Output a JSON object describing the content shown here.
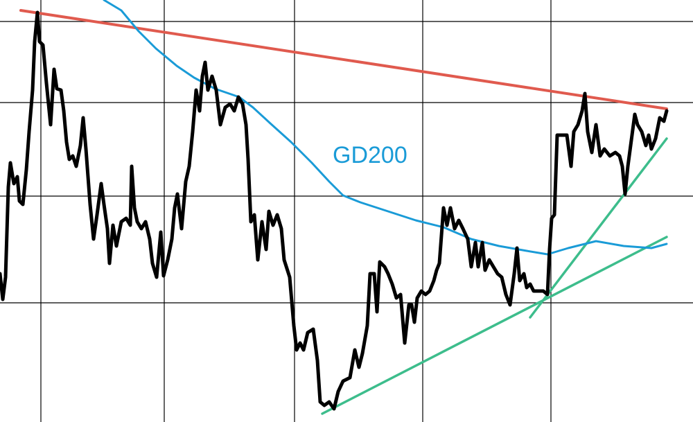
{
  "chart_data": {
    "type": "line",
    "xlim": [
      0,
      1000
    ],
    "ylim": [
      0,
      609
    ],
    "xticks": [
      59,
      237,
      425,
      610,
      795
    ],
    "yticks": [
      172,
      326,
      461,
      578
    ],
    "grid": true,
    "series": [
      {
        "color": "#000000",
        "x": [
          0,
          4,
          8,
          12,
          15,
          20,
          25,
          28,
          33,
          38,
          42,
          47,
          50,
          54,
          57,
          62,
          67,
          73,
          78,
          82,
          88,
          92,
          96,
          100,
          105,
          110,
          116,
          120,
          124,
          130,
          135,
          140,
          146,
          150,
          155,
          158,
          163,
          168,
          175,
          182,
          188,
          190,
          194,
          198,
          204,
          210,
          216,
          220,
          226,
          232,
          236,
          242,
          248,
          252,
          256,
          262,
          268,
          273,
          278,
          283,
          288,
          292,
          296,
          300,
          306,
          312,
          318,
          325,
          332,
          338,
          344,
          350,
          355,
          358,
          362,
          367,
          372,
          378,
          384,
          388,
          394,
          400,
          406,
          410,
          418,
          424,
          428,
          433,
          438,
          444,
          452,
          458,
          462,
          468,
          475,
          482,
          488,
          495,
          505,
          512,
          518,
          523,
          530,
          534,
          540,
          544,
          548,
          555,
          560,
          566,
          572,
          578,
          584,
          590,
          594,
          598,
          602,
          608,
          614,
          620,
          626,
          630,
          634,
          640,
          645,
          650,
          656,
          662,
          668,
          675,
          680,
          686,
          690,
          696,
          700,
          706,
          712,
          718,
          724,
          730,
          736,
          742,
          746,
          750,
          756,
          760,
          765,
          770,
          778,
          784,
          790,
          793,
          796,
          800,
          804,
          810,
          818,
          824,
          828,
          834,
          840,
          844,
          848,
          854,
          860,
          866,
          872,
          880,
          888,
          894,
          898,
          902,
          906,
          910,
          916,
          920,
          926,
          932,
          936,
          940,
          946,
          952,
          958,
          962
        ],
        "values": [
          214,
          177,
          209,
          339,
          374,
          344,
          354,
          319,
          314,
          364,
          419,
          479,
          549,
          591,
          549,
          544,
          489,
          429,
          509,
          481,
          479,
          449,
          404,
          379,
          384,
          369,
          399,
          439,
          394,
          314,
          264,
          299,
          344,
          314,
          279,
          229,
          284,
          254,
          289,
          294,
          284,
          369,
          309,
          289,
          279,
          289,
          264,
          229,
          209,
          274,
          211,
          234,
          264,
          309,
          329,
          279,
          347,
          369,
          419,
          479,
          449,
          499,
          519,
          479,
          499,
          479,
          429,
          454,
          459,
          449,
          469,
          459,
          429,
          379,
          289,
          299,
          234,
          289,
          249,
          304,
          284,
          299,
          279,
          234,
          209,
          139,
          104,
          114,
          104,
          129,
          134,
          89,
          29,
          24,
          29,
          19,
          44,
          59,
          64,
          104,
          79,
          99,
          139,
          214,
          214,
          159,
          231,
          224,
          214,
          199,
          179,
          184,
          114,
          169,
          169,
          144,
          179,
          189,
          184,
          189,
          204,
          219,
          229,
          309,
          284,
          309,
          279,
          291,
          279,
          264,
          224,
          259,
          224,
          259,
          219,
          234,
          224,
          214,
          209,
          184,
          169,
          214,
          251,
          204,
          214,
          194,
          199,
          189,
          189,
          189,
          184,
          249,
          294,
          299,
          414,
          414,
          414,
          369,
          419,
          429,
          449,
          474,
          419,
          389,
          429,
          384,
          394,
          384,
          389,
          384,
          369,
          329,
          369,
          399,
          444,
          429,
          419,
          399,
          414,
          394,
          409,
          439,
          434,
          449
        ]
      },
      {
        "name": "GD200",
        "color": "#1a9bd7",
        "x": [
          150,
          175,
          200,
          225,
          255,
          280,
          310,
          345,
          365,
          390,
          420,
          450,
          475,
          495,
          520,
          560,
          600,
          640,
          680,
          720,
          760,
          790,
          820,
          860,
          900,
          940,
          962
        ],
        "values": [
          609,
          594,
          564,
          539,
          514,
          497,
          481,
          469,
          454,
          431,
          404,
          374,
          347,
          327,
          317,
          304,
          291,
          281,
          264,
          254,
          247,
          242,
          251,
          261,
          254,
          251,
          257
        ]
      },
      {
        "color": "#e05a4e",
        "x": [
          30,
          962
        ],
        "values": [
          594,
          452
        ]
      },
      {
        "color": "#3dbd8c",
        "x": [
          465,
          962
        ],
        "values": [
          12,
          267
        ]
      },
      {
        "color": "#3dbd8c",
        "x": [
          765,
          962
        ],
        "values": [
          151,
          409
        ]
      }
    ]
  }
}
